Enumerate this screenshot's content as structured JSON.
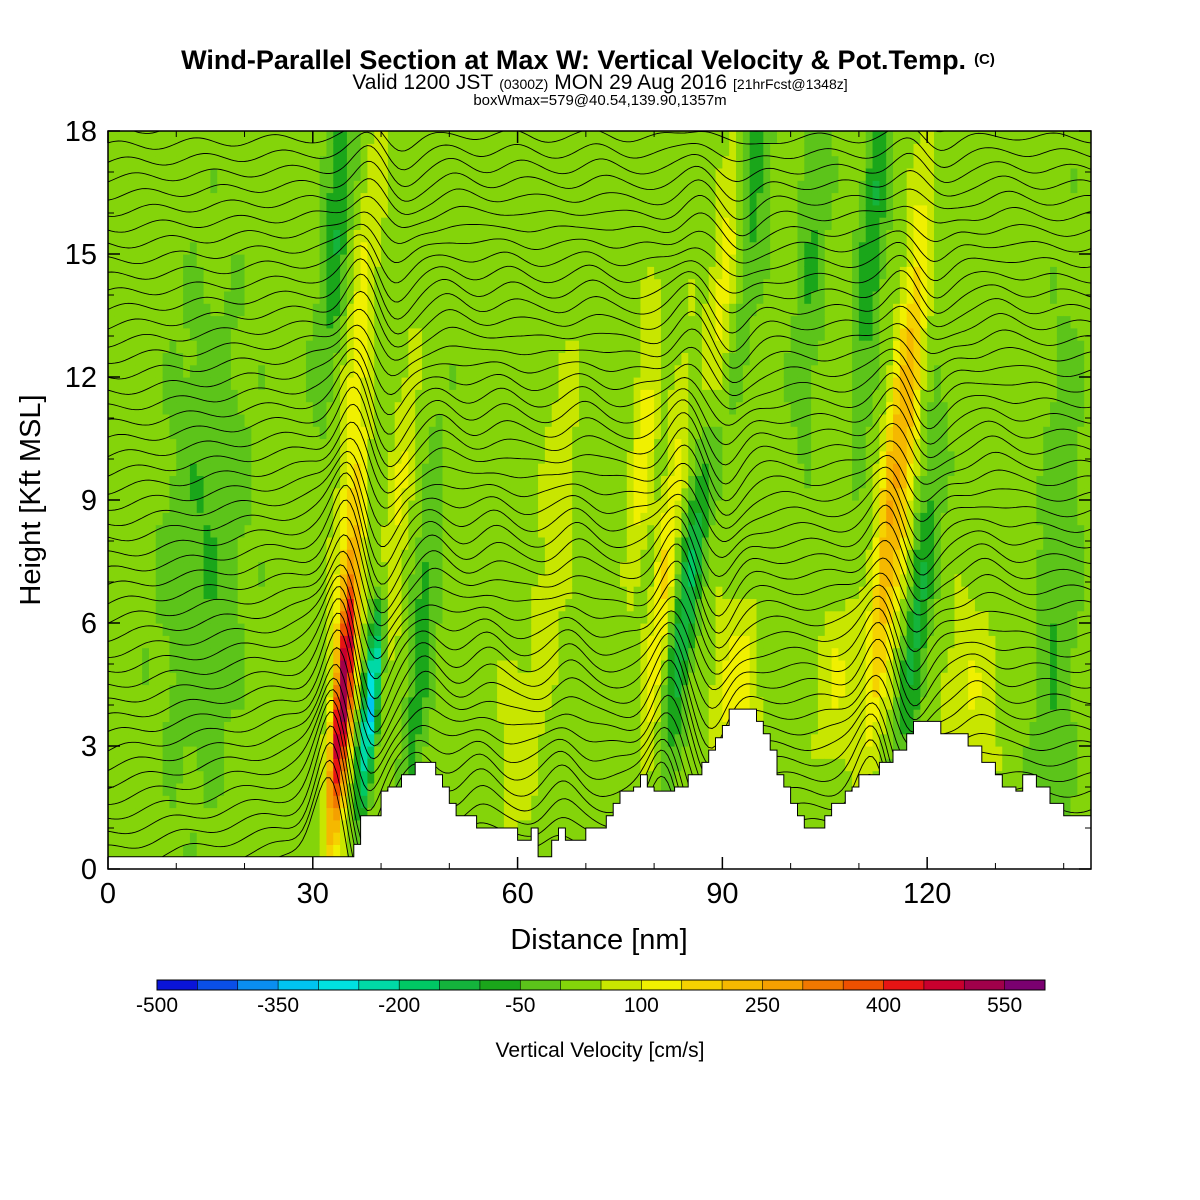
{
  "title": {
    "main": "Wind-Parallel Section at Max W: Vertical Velocity & Pot.Temp.",
    "copyright": "(C)",
    "valid_prefix": "Valid 1200 JST",
    "valid_utc": "(0300Z)",
    "valid_date": "MON 29 Aug 2016",
    "forecast": "[21hrFcst@1348z]",
    "box_info": "boxWmax=579@40.54,139.90,1357m"
  },
  "chart_data": {
    "type": "heatmap",
    "xlabel": "Distance [nm]",
    "ylabel": "Height [Kft MSL]",
    "xlim": [
      0,
      144
    ],
    "ylim": [
      0,
      18
    ],
    "x_ticks": [
      "0",
      "30",
      "60",
      "90",
      "120"
    ],
    "y_ticks": [
      "0",
      "3",
      "6",
      "9",
      "12",
      "15",
      "18"
    ],
    "contour_field": "potential temperature",
    "colorbar": {
      "label": "Vertical Velocity [cm/s]",
      "tick_labels": [
        "-500",
        "-350",
        "-200",
        "-50",
        "100",
        "250",
        "400",
        "550"
      ],
      "levels": [
        -500,
        -450,
        -400,
        -350,
        -300,
        -250,
        -200,
        -150,
        -100,
        -50,
        0,
        50,
        100,
        150,
        200,
        250,
        300,
        350,
        400,
        450,
        500,
        550,
        600
      ],
      "colors": [
        "#0a14d8",
        "#0a4fe8",
        "#0a8ef0",
        "#00c4f0",
        "#00e2e0",
        "#00d9a6",
        "#00c864",
        "#14b43c",
        "#1aa61a",
        "#5cc41a",
        "#84d40a",
        "#c8e600",
        "#f0f000",
        "#f5d200",
        "#f5b800",
        "#f5a000",
        "#f07800",
        "#ef5000",
        "#e61414",
        "#c8002e",
        "#a0004a",
        "#7a0070"
      ]
    },
    "terrain_kft": [
      [
        0,
        0.3
      ],
      [
        8,
        0.3
      ],
      [
        16,
        0.3
      ],
      [
        24,
        0.3
      ],
      [
        30,
        0.3
      ],
      [
        34,
        0.3
      ],
      [
        36,
        0.6
      ],
      [
        37,
        1.3
      ],
      [
        38,
        1.3
      ],
      [
        39,
        1.3
      ],
      [
        40,
        1.9
      ],
      [
        41,
        2.0
      ],
      [
        42,
        2.0
      ],
      [
        43,
        2.3
      ],
      [
        44,
        2.3
      ],
      [
        45,
        2.6
      ],
      [
        46,
        2.6
      ],
      [
        47,
        2.6
      ],
      [
        48,
        2.3
      ],
      [
        49,
        2.0
      ],
      [
        50,
        1.6
      ],
      [
        51,
        1.3
      ],
      [
        52,
        1.3
      ],
      [
        53,
        1.3
      ],
      [
        54,
        1.0
      ],
      [
        55,
        1.0
      ],
      [
        56,
        1.0
      ],
      [
        57,
        1.0
      ],
      [
        58,
        1.0
      ],
      [
        59,
        1.0
      ],
      [
        60,
        0.7
      ],
      [
        61,
        0.7
      ],
      [
        62,
        1.0
      ],
      [
        63,
        0.3
      ],
      [
        64,
        0.3
      ],
      [
        65,
        0.7
      ],
      [
        66,
        1.0
      ],
      [
        67,
        0.7
      ],
      [
        68,
        0.7
      ],
      [
        69,
        0.7
      ],
      [
        70,
        1.0
      ],
      [
        72,
        1.0
      ],
      [
        73,
        1.3
      ],
      [
        74,
        1.6
      ],
      [
        75,
        1.9
      ],
      [
        76,
        1.9
      ],
      [
        77,
        2.0
      ],
      [
        78,
        2.3
      ],
      [
        79,
        2.0
      ],
      [
        80,
        1.9
      ],
      [
        81,
        1.9
      ],
      [
        82,
        1.9
      ],
      [
        83,
        2.0
      ],
      [
        84,
        2.0
      ],
      [
        85,
        2.3
      ],
      [
        86,
        2.3
      ],
      [
        87,
        2.6
      ],
      [
        88,
        2.9
      ],
      [
        89,
        3.2
      ],
      [
        90,
        3.5
      ],
      [
        91,
        3.9
      ],
      [
        92,
        3.9
      ],
      [
        93,
        3.9
      ],
      [
        94,
        3.9
      ],
      [
        95,
        3.6
      ],
      [
        96,
        3.3
      ],
      [
        97,
        2.9
      ],
      [
        98,
        2.3
      ],
      [
        99,
        2.0
      ],
      [
        100,
        1.6
      ],
      [
        101,
        1.3
      ],
      [
        102,
        1.0
      ],
      [
        103,
        1.0
      ],
      [
        104,
        1.0
      ],
      [
        105,
        1.3
      ],
      [
        106,
        1.6
      ],
      [
        107,
        1.6
      ],
      [
        108,
        1.9
      ],
      [
        109,
        2.0
      ],
      [
        110,
        2.3
      ],
      [
        111,
        2.3
      ],
      [
        112,
        2.3
      ],
      [
        113,
        2.6
      ],
      [
        114,
        2.6
      ],
      [
        115,
        2.9
      ],
      [
        116,
        2.9
      ],
      [
        117,
        3.3
      ],
      [
        118,
        3.6
      ],
      [
        119,
        3.6
      ],
      [
        120,
        3.6
      ],
      [
        121,
        3.6
      ],
      [
        122,
        3.3
      ],
      [
        123,
        3.3
      ],
      [
        124,
        3.3
      ],
      [
        125,
        3.3
      ],
      [
        126,
        3.0
      ],
      [
        127,
        3.0
      ],
      [
        128,
        2.6
      ],
      [
        129,
        2.6
      ],
      [
        130,
        2.3
      ],
      [
        131,
        2.0
      ],
      [
        132,
        2.0
      ],
      [
        133,
        1.9
      ],
      [
        134,
        2.3
      ],
      [
        135,
        2.3
      ],
      [
        136,
        2.0
      ],
      [
        137,
        2.0
      ],
      [
        138,
        1.6
      ],
      [
        139,
        1.6
      ],
      [
        140,
        1.3
      ],
      [
        141,
        1.3
      ],
      [
        142,
        1.3
      ],
      [
        143,
        1.3
      ],
      [
        144,
        1.3
      ]
    ]
  }
}
